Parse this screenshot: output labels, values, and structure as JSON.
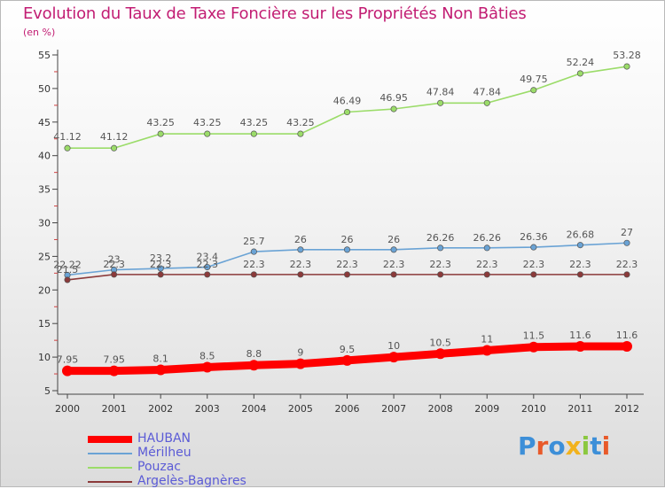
{
  "header": {
    "title": "Evolution du Taux de Taxe Foncière sur les Propriétés Non Bâties",
    "unit": "(en %)"
  },
  "logo": {
    "text": "Proxiti"
  },
  "colors": {
    "title": "#c21d73",
    "HAUBAN": "#ff0000",
    "Mérilheu": "#6aa3d5",
    "Pouzac": "#9bdc69",
    "Argelès-Bagnères": "#8b3a3a",
    "legend_text": "#5b5bd6"
  },
  "chart_data": {
    "type": "line",
    "title": "Evolution du Taux de Taxe Foncière sur les Propriétés Non Bâties",
    "ylabel": "(en %)",
    "xlabel": "",
    "x": [
      "2000",
      "2001",
      "2002",
      "2003",
      "2004",
      "2005",
      "2006",
      "2007",
      "2008",
      "2009",
      "2010",
      "2011",
      "2012"
    ],
    "ylim": [
      5,
      55
    ],
    "yticks": [
      5,
      10,
      15,
      20,
      25,
      30,
      35,
      40,
      45,
      50,
      55
    ],
    "grid": false,
    "legend_position": "bottom-left",
    "series": [
      {
        "name": "HAUBAN",
        "color": "#ff0000",
        "values": [
          7.95,
          7.95,
          8.1,
          8.5,
          8.8,
          9,
          9.5,
          10,
          10.5,
          11,
          11.5,
          11.6,
          11.6
        ],
        "labels": [
          "7.95",
          "7.95",
          "8.1",
          "8.5",
          "8.8",
          "9",
          "9.5",
          "10",
          "10.5",
          "11",
          "11.5",
          "11.6",
          "11.6"
        ]
      },
      {
        "name": "Mérilheu",
        "color": "#6aa3d5",
        "values": [
          22.22,
          23,
          23.2,
          23.4,
          25.7,
          26,
          26,
          26,
          26.26,
          26.26,
          26.36,
          26.68,
          27
        ],
        "labels": [
          "22.22",
          "23",
          "23.2",
          "23.4",
          "25.7",
          "26",
          "26",
          "26",
          "26.26",
          "26.26",
          "26.36",
          "26.68",
          "27"
        ]
      },
      {
        "name": "Pouzac",
        "color": "#9bdc69",
        "values": [
          41.12,
          41.12,
          43.25,
          43.25,
          43.25,
          43.25,
          46.49,
          46.95,
          47.84,
          47.84,
          49.75,
          52.24,
          53.28
        ],
        "labels": [
          "41.12",
          "41.12",
          "43.25",
          "43.25",
          "43.25",
          "43.25",
          "46.49",
          "46.95",
          "47.84",
          "47.84",
          "49.75",
          "52.24",
          "53.28"
        ]
      },
      {
        "name": "Argelès-Bagnères",
        "color": "#8b3a3a",
        "values": [
          21.5,
          22.3,
          22.3,
          22.3,
          22.3,
          22.3,
          22.3,
          22.3,
          22.3,
          22.3,
          22.3,
          22.3,
          22.3
        ],
        "labels": [
          "21.5",
          "22.3",
          "22.3",
          "22.3",
          "22.3",
          "22.3",
          "22.3",
          "22.3",
          "22.3",
          "22.3",
          "22.3",
          "22.3",
          "22.3"
        ]
      }
    ]
  }
}
